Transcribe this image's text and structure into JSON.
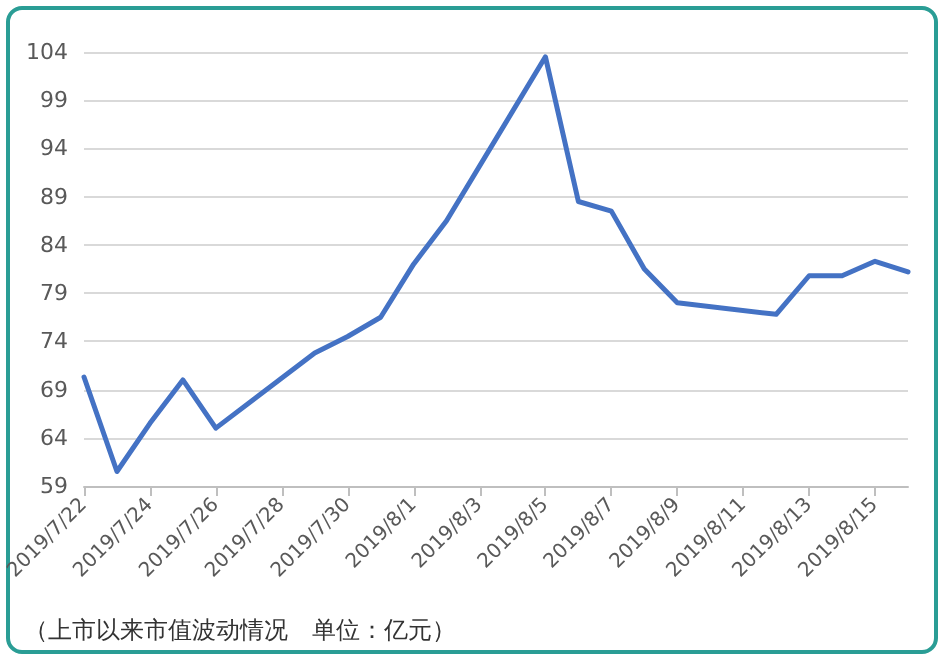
{
  "chart_data": {
    "type": "line",
    "x": [
      "2019-07-22",
      "2019-07-23",
      "2019-07-24",
      "2019-07-25",
      "2019-07-26",
      "2019-07-29",
      "2019-07-30",
      "2019-07-31",
      "2019-08-01",
      "2019-08-02",
      "2019-08-05",
      "2019-08-06",
      "2019-08-07",
      "2019-08-08",
      "2019-08-09",
      "2019-08-12",
      "2019-08-13",
      "2019-08-14",
      "2019-08-15",
      "2019-08-16"
    ],
    "series": [
      {
        "color": "#4472c4",
        "values": [
          70.3,
          60.5,
          65.5,
          70,
          65,
          72.8,
          74.5,
          76.5,
          82,
          86.5,
          103.5,
          88.5,
          87.5,
          81.5,
          78,
          76.8,
          80.8,
          80.8,
          82.3,
          81.2
        ]
      }
    ],
    "xlim": [
      "2019-07-22",
      "2019-08-16"
    ],
    "xticks": [
      {
        "value": "2019-07-22",
        "label": "2019/7/22"
      },
      {
        "value": "2019-07-24",
        "label": "2019/7/24"
      },
      {
        "value": "2019-07-26",
        "label": "2019/7/26"
      },
      {
        "value": "2019-07-28",
        "label": "2019/7/28"
      },
      {
        "value": "2019-07-30",
        "label": "2019/7/30"
      },
      {
        "value": "2019-08-01",
        "label": "2019/8/1"
      },
      {
        "value": "2019-08-03",
        "label": "2019/8/3"
      },
      {
        "value": "2019-08-05",
        "label": "2019/8/5"
      },
      {
        "value": "2019-08-07",
        "label": "2019/8/7"
      },
      {
        "value": "2019-08-09",
        "label": "2019/8/9"
      },
      {
        "value": "2019-08-11",
        "label": "2019/8/11"
      },
      {
        "value": "2019-08-13",
        "label": "2019/8/13"
      },
      {
        "value": "2019-08-15",
        "label": "2019/8/15"
      }
    ],
    "ylim": [
      59,
      104
    ],
    "yticks": [
      59,
      64,
      69,
      74,
      79,
      84,
      89,
      94,
      99,
      104
    ],
    "grid": "y",
    "marker": "none",
    "line_style": "solid",
    "annotations": [
      "（上市以来市值波动情况　单位：亿元）"
    ]
  }
}
